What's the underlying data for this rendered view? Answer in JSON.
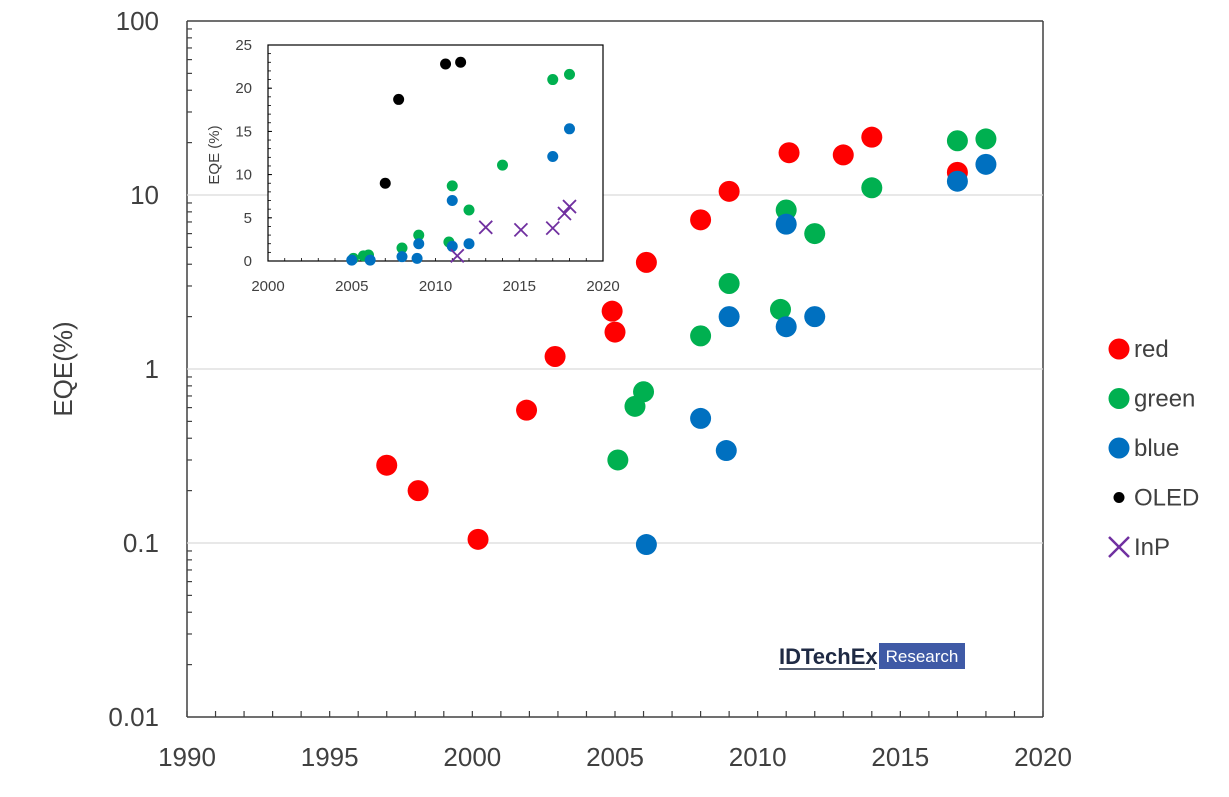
{
  "chart_data": [
    {
      "type": "scatter",
      "ylabel": "EQE(%)",
      "xlabel": "",
      "title": "",
      "xlim": [
        1990,
        2020
      ],
      "ylim": [
        0.01,
        100
      ],
      "yscale": "log",
      "x_ticks": [
        "1990",
        "1995",
        "2000",
        "2005",
        "2010",
        "2015",
        "2020"
      ],
      "y_ticks": [
        "0.01",
        "0.1",
        "1",
        "10",
        "100"
      ],
      "grid": "horizontal major gridlines",
      "legend": {
        "position": "right",
        "entries": [
          {
            "label": "red",
            "color": "#ff0000",
            "marker": "circle"
          },
          {
            "label": "green",
            "color": "#00b050",
            "marker": "circle"
          },
          {
            "label": "blue",
            "color": "#0070c0",
            "marker": "circle"
          },
          {
            "label": "OLED",
            "color": "#000000",
            "marker": "small-circle"
          },
          {
            "label": "InP",
            "color": "#7030a0",
            "marker": "cross"
          }
        ]
      },
      "series": [
        {
          "name": "red",
          "color": "#ff0000",
          "points": [
            {
              "x": 1997.0,
              "y": 0.28
            },
            {
              "x": 1998.1,
              "y": 0.2
            },
            {
              "x": 2000.2,
              "y": 0.105
            },
            {
              "x": 2001.9,
              "y": 0.58
            },
            {
              "x": 2002.9,
              "y": 1.18
            },
            {
              "x": 2004.9,
              "y": 2.15
            },
            {
              "x": 2005.0,
              "y": 1.63
            },
            {
              "x": 2006.1,
              "y": 4.1
            },
            {
              "x": 2008.0,
              "y": 7.2
            },
            {
              "x": 2009.0,
              "y": 10.5
            },
            {
              "x": 2011.1,
              "y": 17.5
            },
            {
              "x": 2013.0,
              "y": 17.0
            },
            {
              "x": 2014.0,
              "y": 21.5
            },
            {
              "x": 2017.0,
              "y": 13.5
            }
          ]
        },
        {
          "name": "green",
          "color": "#00b050",
          "points": [
            {
              "x": 2005.1,
              "y": 0.3
            },
            {
              "x": 2005.7,
              "y": 0.61
            },
            {
              "x": 2006.0,
              "y": 0.74
            },
            {
              "x": 2008.0,
              "y": 1.55
            },
            {
              "x": 2009.0,
              "y": 3.1
            },
            {
              "x": 2010.8,
              "y": 2.2
            },
            {
              "x": 2011.0,
              "y": 8.2
            },
            {
              "x": 2012.0,
              "y": 6.0
            },
            {
              "x": 2014.0,
              "y": 11.0
            },
            {
              "x": 2017.0,
              "y": 20.5
            },
            {
              "x": 2018.0,
              "y": 21.0
            }
          ]
        },
        {
          "name": "blue",
          "color": "#0070c0",
          "points": [
            {
              "x": 2006.1,
              "y": 0.098
            },
            {
              "x": 2008.0,
              "y": 0.52
            },
            {
              "x": 2008.9,
              "y": 0.34
            },
            {
              "x": 2009.0,
              "y": 2.0
            },
            {
              "x": 2011.0,
              "y": 1.75
            },
            {
              "x": 2011.0,
              "y": 6.8
            },
            {
              "x": 2012.0,
              "y": 2.0
            },
            {
              "x": 2017.0,
              "y": 12.0
            },
            {
              "x": 2018.0,
              "y": 15.0
            }
          ]
        }
      ]
    },
    {
      "type": "scatter",
      "ylabel": "EQE (%)",
      "xlabel": "",
      "title": "",
      "xlim": [
        2000,
        2020
      ],
      "ylim": [
        0,
        25
      ],
      "x_ticks": [
        "2000",
        "2005",
        "2010",
        "2015",
        "2020"
      ],
      "y_ticks": [
        "0",
        "5",
        "10",
        "15",
        "20",
        "25"
      ],
      "series": [
        {
          "name": "OLED",
          "color": "#000000",
          "points": [
            {
              "x": 2007.0,
              "y": 9.0
            },
            {
              "x": 2007.8,
              "y": 18.7
            },
            {
              "x": 2010.6,
              "y": 22.8
            },
            {
              "x": 2011.5,
              "y": 23.0
            }
          ]
        },
        {
          "name": "green",
          "color": "#00b050",
          "points": [
            {
              "x": 2005.1,
              "y": 0.3
            },
            {
              "x": 2005.7,
              "y": 0.6
            },
            {
              "x": 2006.0,
              "y": 0.7
            },
            {
              "x": 2008.0,
              "y": 1.5
            },
            {
              "x": 2009.0,
              "y": 3.0
            },
            {
              "x": 2010.8,
              "y": 2.2
            },
            {
              "x": 2011.0,
              "y": 8.7
            },
            {
              "x": 2012.0,
              "y": 5.9
            },
            {
              "x": 2014.0,
              "y": 11.1
            },
            {
              "x": 2017.0,
              "y": 21.0
            },
            {
              "x": 2018.0,
              "y": 21.6
            }
          ]
        },
        {
          "name": "blue",
          "color": "#0070c0",
          "points": [
            {
              "x": 2005.0,
              "y": 0.1
            },
            {
              "x": 2006.1,
              "y": 0.1
            },
            {
              "x": 2008.0,
              "y": 0.5
            },
            {
              "x": 2008.9,
              "y": 0.3
            },
            {
              "x": 2009.0,
              "y": 2.0
            },
            {
              "x": 2011.0,
              "y": 1.7
            },
            {
              "x": 2011.0,
              "y": 7.0
            },
            {
              "x": 2012.0,
              "y": 2.0
            },
            {
              "x": 2017.0,
              "y": 12.1
            },
            {
              "x": 2018.0,
              "y": 15.3
            }
          ]
        },
        {
          "name": "InP",
          "color": "#7030a0",
          "points": [
            {
              "x": 2011.3,
              "y": 0.6
            },
            {
              "x": 2013.0,
              "y": 3.9
            },
            {
              "x": 2015.1,
              "y": 3.6
            },
            {
              "x": 2017.0,
              "y": 3.8
            },
            {
              "x": 2017.7,
              "y": 5.5
            },
            {
              "x": 2018.0,
              "y": 6.3
            }
          ]
        }
      ]
    }
  ],
  "watermark": {
    "brand": "IDTechEx",
    "tag": "Research",
    "tag_color": "#3f5aa6"
  }
}
